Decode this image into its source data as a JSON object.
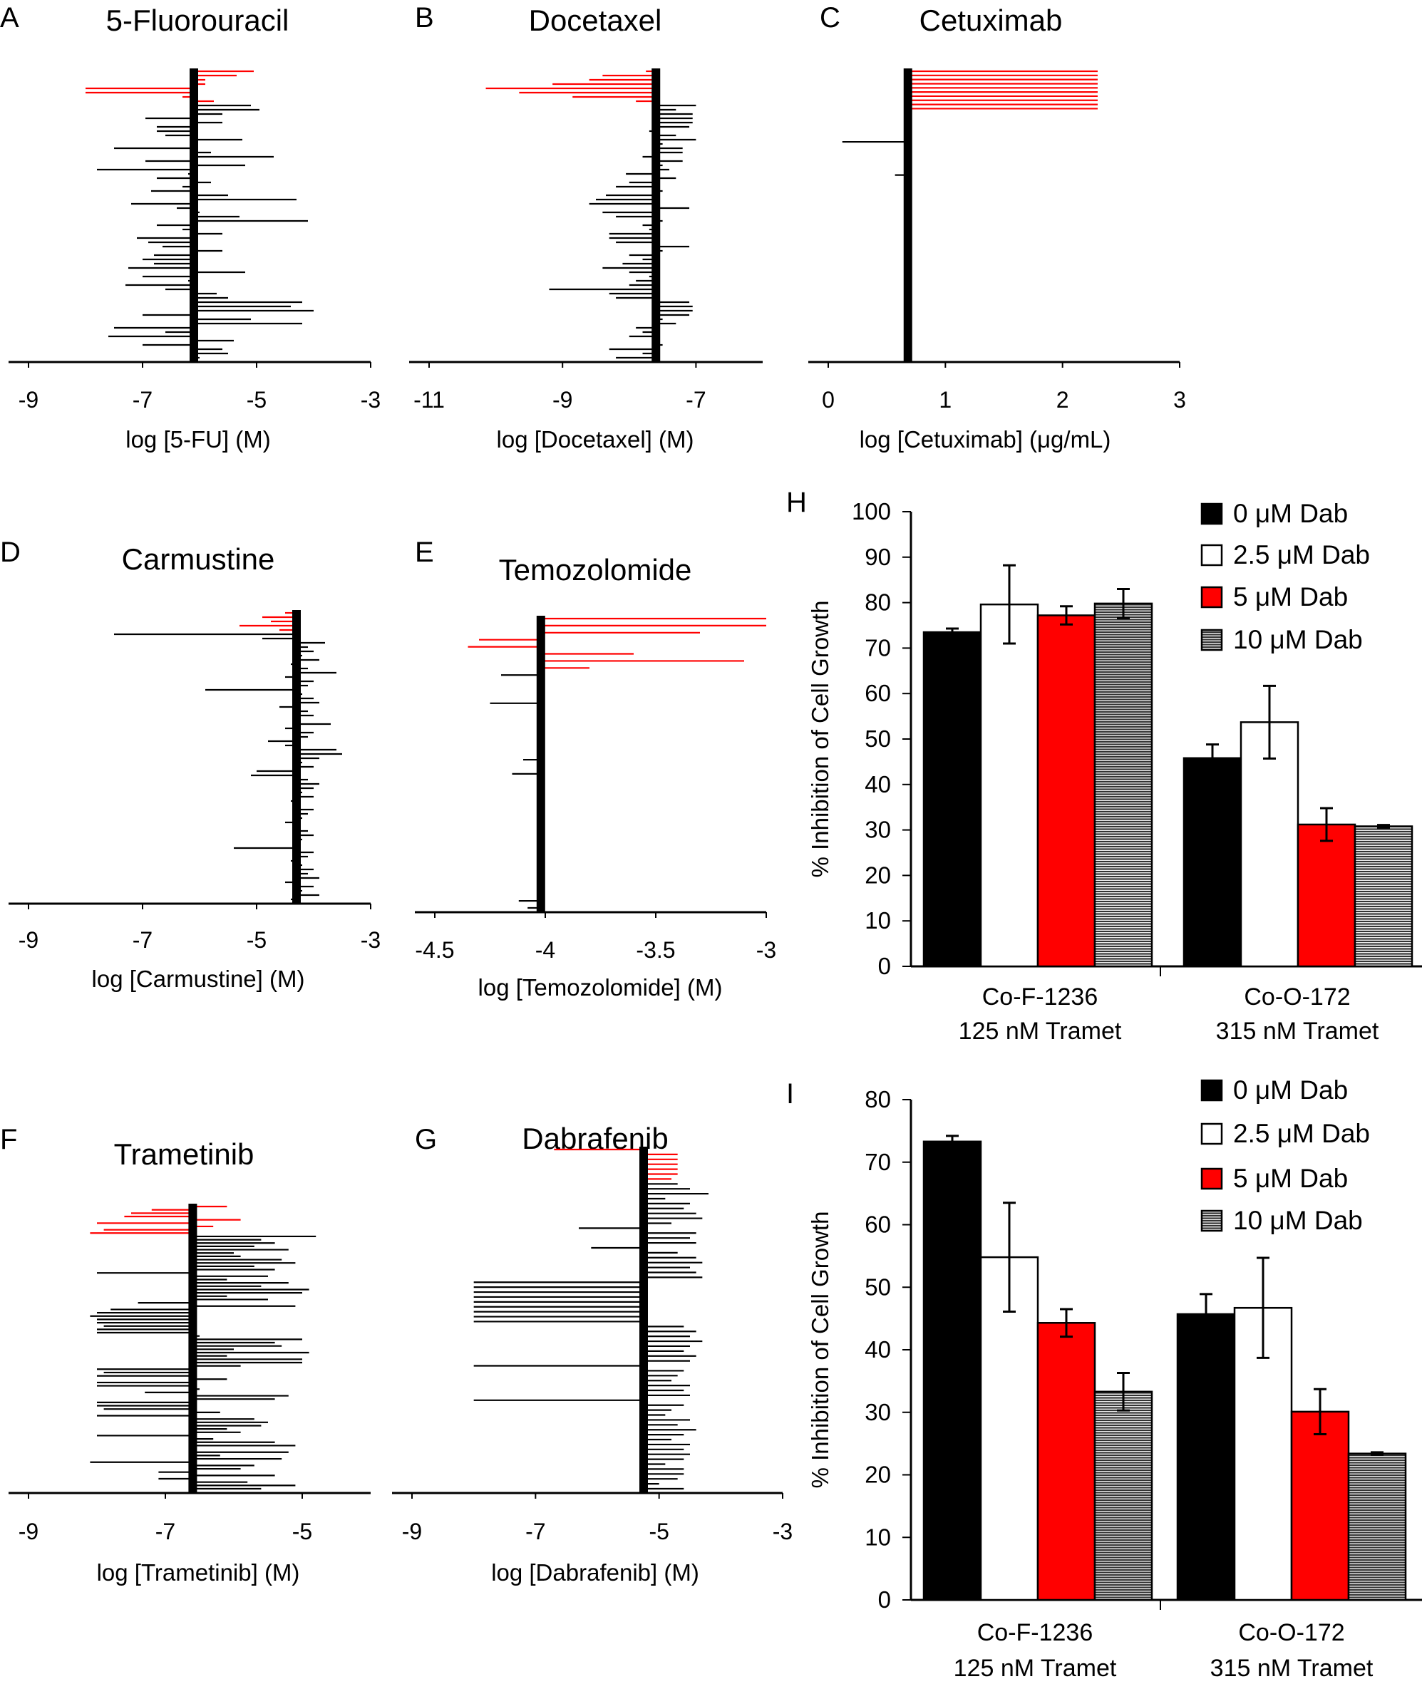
{
  "panels": [
    {
      "letter": "A",
      "title": "5-Fluorouracil",
      "xlabel": "log [5-FU] (M)",
      "ticks": [
        "-9",
        "-7",
        "-5",
        "-3"
      ],
      "xlim": [
        -9,
        -3
      ],
      "center": -6.1,
      "highlight_color": "#ff0000",
      "red": [
        -5.05,
        -5.35,
        -5.9,
        -5.9,
        -8.0,
        -8.0,
        -6.3,
        -5.75
      ],
      "black": [
        -5.1,
        -4.95,
        -5.6,
        -6.95,
        -5.6,
        -6.75,
        -6.75,
        -6.6,
        -5.25,
        -6.15,
        -7.5,
        -5.8,
        -4.7,
        -6.95,
        -5.2,
        -7.8,
        -6.2,
        -6.75,
        -5.8,
        -6.3,
        -6.85,
        -5.5,
        -4.3,
        -7.2,
        -6.4,
        -6.0,
        -5.3,
        -4.1,
        -6.75,
        -6.3,
        -5.6,
        -7.1,
        -6.9,
        -6.65,
        -5.6,
        -6.8,
        -7.0,
        -6.8,
        -7.25,
        -5.2,
        -7.0,
        -6.2,
        -7.3,
        -6.6,
        -5.7,
        -5.5,
        -4.2,
        -4.4,
        -4.0,
        -7.0,
        -5.1,
        -4.2,
        -7.5,
        -6.6,
        -7.6,
        -5.4,
        -7.0,
        -5.6,
        -5.5,
        -6.0
      ]
    },
    {
      "letter": "B",
      "title": "Docetaxel",
      "xlabel": "log [Docetaxel] (M)",
      "ticks": [
        "-11",
        "-9",
        "-7"
      ],
      "xlim": [
        -11,
        -6
      ],
      "center": -7.6,
      "highlight_color": "#ff0000",
      "red": [
        -7.75,
        -8.4,
        -8.6,
        -9.15,
        -10.15,
        -9.65,
        -8.85,
        -7.9
      ],
      "black": [
        -7.0,
        -7.3,
        -7.05,
        -7.05,
        -7.05,
        -7.1,
        -7.7,
        -7.3,
        -7.0,
        -7.5,
        -7.2,
        -7.2,
        -7.8,
        -7.2,
        -7.5,
        -7.4,
        -8.05,
        -7.3,
        -8.0,
        -8.2,
        -7.5,
        -8.35,
        -8.5,
        -8.6,
        -7.1,
        -8.4,
        -8.2,
        -7.5,
        -7.8,
        -7.7,
        -8.3,
        -8.3,
        -8.2,
        -7.1,
        -7.5,
        -8.0,
        -7.8,
        -8.1,
        -8.4,
        -8.0,
        -7.7,
        -7.9,
        -8.0,
        -9.2,
        -8.3,
        -8.2,
        -7.1,
        -7.05,
        -7.05,
        -7.1,
        -7.5,
        -7.3,
        -7.9,
        -7.8,
        -8.0,
        -7.6,
        -7.5,
        -8.3,
        -7.8,
        -8.2
      ]
    },
    {
      "letter": "C",
      "title": "Cetuximab",
      "xlabel": "log [Cetuximab] (μg/mL)",
      "ticks": [
        "0",
        "1",
        "2",
        "3"
      ],
      "xlim": [
        0,
        3
      ],
      "center": 0.68,
      "highlight_color": "#ff0000",
      "red": [
        2.3,
        2.3,
        2.3,
        2.3,
        2.3,
        2.3,
        2.3,
        2.3,
        2.3,
        2.3
      ],
      "outliers": [
        {
          "value": 0.12,
          "row": 17
        },
        {
          "value": 0.57,
          "row": 25
        }
      ],
      "row_count": 70
    },
    {
      "letter": "D",
      "title": "Carmustine",
      "xlabel": "log [Carmustine] (M)",
      "ticks": [
        "-9",
        "-7",
        "-5",
        "-3"
      ],
      "xlim": [
        -9,
        -3
      ],
      "center": -4.3,
      "highlight_color": "#ff0000",
      "red": [
        -4.5,
        -4.9,
        -4.75,
        -5.3,
        -4.6
      ],
      "black": [
        -7.5,
        -4.9,
        -3.8,
        -4.1,
        -4.0,
        -4.2,
        -3.9,
        -4.4,
        -4.1,
        -3.6,
        -4.5,
        -4.0,
        -4.1,
        -5.9,
        -4.2,
        -4.0,
        -3.9,
        -4.6,
        -4.1,
        -4.0,
        -4.3,
        -3.7,
        -4.5,
        -4.0,
        -4.1,
        -4.8,
        -4.5,
        -3.6,
        -3.5,
        -3.9,
        -4.2,
        -4.0,
        -5.0,
        -5.1,
        -4.1,
        -3.9,
        -4.0,
        -4.2,
        -4.0,
        -4.4,
        -4.3,
        -4.0,
        -4.1,
        -4.2,
        -4.5,
        -4.3,
        -4.1,
        -4.0,
        -4.2,
        -4.3,
        -5.4,
        -4.0,
        -4.1,
        -4.4,
        -4.2,
        -4.0,
        -4.1,
        -3.9,
        -4.5,
        -4.0,
        -4.2,
        -3.9,
        -4.4
      ]
    },
    {
      "letter": "E",
      "title": "Temozolomide",
      "xlabel": "log [Temozolomide] (M)",
      "ticks": [
        "-4.5",
        "-4",
        "-3.5",
        "-3"
      ],
      "xlim": [
        -4.5,
        -3
      ],
      "center": -4.02,
      "highlight_color": "#ff0000",
      "red": [
        -3.0,
        -3.0,
        -3.3,
        -4.3,
        -4.35,
        -3.6,
        -3.1,
        -3.8
      ],
      "outliers": [
        {
          "value": -4.2,
          "row": 8
        },
        {
          "value": -4.25,
          "row": 12
        },
        {
          "value": -4.1,
          "row": 20
        },
        {
          "value": -4.15,
          "row": 22
        },
        {
          "value": -4.12,
          "row": 40
        },
        {
          "value": -4.08,
          "row": 41
        }
      ],
      "row_count": 42
    },
    {
      "letter": "F",
      "title": "Trametinib",
      "xlabel": "log [Trametinib] (M)",
      "ticks": [
        "-9",
        "-7",
        "-5"
      ],
      "xlim": [
        -9,
        -4
      ],
      "center": -6.6,
      "highlight_color": "#ff0000",
      "red": [
        -6.1,
        -7.2,
        -7.5,
        -7.6,
        -5.9,
        -8.0,
        -6.3,
        -7.9,
        -8.1
      ],
      "black": [
        -4.8,
        -5.6,
        -5.4,
        -5.7,
        -5.2,
        -6.0,
        -5.9,
        -5.3,
        -5.1,
        -5.7,
        -5.4,
        -8.0,
        -5.5,
        -6.1,
        -5.2,
        -5.6,
        -4.9,
        -5.0,
        -6.1,
        -5.5,
        -7.4,
        -5.1,
        -7.8,
        -8.0,
        -8.1,
        -8.0,
        -8.0,
        -7.9,
        -8.0,
        -8.0,
        -6.5,
        -5.0,
        -5.4,
        -5.3,
        -6.0,
        -4.9,
        -6.1,
        -5.0,
        -5.0,
        -5.9,
        -8.0,
        -7.9,
        -8.0,
        -6.1,
        -8.0,
        -8.0,
        -6.5,
        -7.3,
        -5.2,
        -5.4,
        -8.0,
        -8.0,
        -7.9,
        -6.2,
        -8.0,
        -5.7,
        -5.5,
        -5.6,
        -6.1,
        -5.9,
        -8.0,
        -6.3,
        -5.4,
        -5.1,
        -6.6,
        -5.2,
        -6.2,
        -5.3,
        -8.1,
        -5.7,
        -5.9,
        -7.1,
        -5.4,
        -7.1,
        -5.8,
        -5.1,
        -5.6
      ]
    },
    {
      "letter": "G",
      "title": "Dabrafenib",
      "xlabel": "log [Dabrafenib] (M)",
      "ticks": [
        "-9",
        "-7",
        "-5",
        "-3"
      ],
      "xlim": [
        -9,
        -3
      ],
      "center": -5.25,
      "highlight_color": "#ff0000",
      "red": [
        -6.7,
        -4.7,
        -4.7,
        -4.7,
        -4.7,
        -4.7,
        -4.8
      ],
      "black": [
        -4.7,
        -4.5,
        -4.2,
        -4.9,
        -4.5,
        -4.6,
        -4.4,
        -4.3,
        -4.8,
        -6.3,
        -4.4,
        -4.5,
        -4.4,
        -6.1,
        -4.7,
        -4.4,
        -4.3,
        -4.5,
        -4.4,
        -4.3,
        -8.0,
        -8.0,
        -8.0,
        -8.0,
        -8.0,
        -8.0,
        -8.0,
        -8.0,
        -8.0,
        -4.6,
        -4.4,
        -4.5,
        -4.3,
        -4.5,
        -4.6,
        -4.4,
        -4.5,
        -8.0,
        -4.6,
        -4.7,
        -4.8,
        -4.5,
        -4.6,
        -4.5,
        -8.0,
        -4.6,
        -4.8,
        -4.9,
        -4.5,
        -4.7,
        -4.4,
        -4.6,
        -4.8,
        -4.5,
        -4.6,
        -4.5,
        -4.6,
        -4.9,
        -4.6,
        -4.6,
        -4.7,
        -5.0,
        -4.6
      ]
    }
  ],
  "chart_data": [
    {
      "panel": "H",
      "type": "bar",
      "ylabel": "% Inhibition of Cell Growth",
      "ylim": [
        0,
        100
      ],
      "yticks": [
        "0",
        "10",
        "20",
        "30",
        "40",
        "50",
        "60",
        "70",
        "80",
        "90",
        "100"
      ],
      "categories": [
        [
          "Co-F-1236",
          "125 nM Tramet"
        ],
        [
          "Co-O-172",
          "315 nM Tramet"
        ]
      ],
      "series": [
        {
          "name": "0 μM Dab",
          "color": "#000000",
          "values": [
            73.5,
            45.8
          ],
          "errors": [
            0.8,
            3.0
          ]
        },
        {
          "name": "2.5 μM Dab",
          "color": "#ffffff",
          "values": [
            79.6,
            53.7
          ],
          "errors": [
            8.6,
            8.0
          ]
        },
        {
          "name": "5 μM Dab",
          "color": "#ff0000",
          "values": [
            77.2,
            31.2
          ],
          "errors": [
            2.0,
            3.6
          ]
        },
        {
          "name": "10 μM Dab",
          "color": "hatched",
          "values": [
            79.8,
            30.8
          ],
          "errors": [
            3.2,
            0.3
          ]
        }
      ],
      "legend": "top-right"
    },
    {
      "panel": "I",
      "type": "bar",
      "ylabel": "% Inhibition of Cell Growth",
      "ylim": [
        0,
        80
      ],
      "yticks": [
        "0",
        "10",
        "20",
        "30",
        "40",
        "50",
        "60",
        "70",
        "80"
      ],
      "categories": [
        [
          "Co-F-1236",
          "125 nM Tramet"
        ],
        [
          "Co-O-172",
          "315 nM Tramet"
        ]
      ],
      "series": [
        {
          "name": "0 μM Dab",
          "color": "#000000",
          "values": [
            73.3,
            45.7
          ],
          "errors": [
            0.9,
            3.2
          ]
        },
        {
          "name": "2.5 μM Dab",
          "color": "#ffffff",
          "values": [
            54.8,
            46.7
          ],
          "errors": [
            8.7,
            8.0
          ]
        },
        {
          "name": "5 μM Dab",
          "color": "#ff0000",
          "values": [
            44.3,
            30.1
          ],
          "errors": [
            2.2,
            3.6
          ]
        },
        {
          "name": "10 μM Dab",
          "color": "hatched",
          "values": [
            33.3,
            23.4
          ],
          "errors": [
            3.0,
            0.2
          ]
        }
      ],
      "legend": "top-right"
    }
  ]
}
